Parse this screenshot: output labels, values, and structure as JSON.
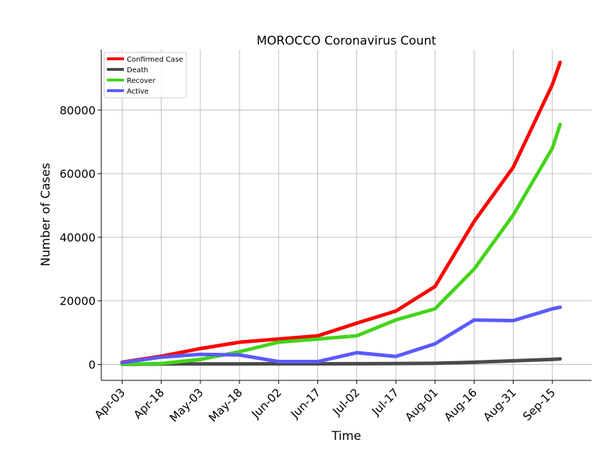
{
  "chart_data": {
    "type": "line",
    "title": "MOROCCO Coronavirus Count",
    "xlabel": "Time",
    "ylabel": "Number of Cases",
    "grid": true,
    "legend_position": "top-left",
    "x_ticks": [
      "Apr-03",
      "Apr-18",
      "May-03",
      "May-18",
      "Jun-02",
      "Jun-17",
      "Jul-02",
      "Jul-17",
      "Aug-01",
      "Aug-16",
      "Aug-31",
      "Sep-15"
    ],
    "x_tick_days": [
      0,
      15,
      30,
      45,
      60,
      75,
      90,
      105,
      120,
      135,
      150,
      165
    ],
    "y_ticks": [
      0,
      20000,
      40000,
      60000,
      80000
    ],
    "y_tick_labels": [
      "0",
      "20000",
      "40000",
      "60000",
      "80000"
    ],
    "xlim_days": [
      -8,
      180
    ],
    "ylim": [
      -5000,
      99000
    ],
    "x_dates": [
      "Apr-03",
      "Apr-18",
      "May-03",
      "May-18",
      "Jun-02",
      "Jun-17",
      "Jul-02",
      "Jul-17",
      "Aug-01",
      "Aug-16",
      "Aug-31",
      "Sep-15",
      "Sep-18"
    ],
    "x_days": [
      0,
      15,
      30,
      45,
      60,
      75,
      90,
      105,
      120,
      135,
      150,
      165,
      168
    ],
    "series": [
      {
        "name": "Confirmed Case",
        "color": "#ff0000",
        "values": [
          700,
          2600,
          5000,
          7000,
          8000,
          9000,
          13000,
          16800,
          24500,
          45000,
          62000,
          88000,
          95000
        ]
      },
      {
        "name": "Death",
        "color": "#4a4a4a",
        "values": [
          40,
          140,
          190,
          195,
          205,
          215,
          230,
          270,
          370,
          700,
          1150,
          1600,
          1750
        ]
      },
      {
        "name": "Recover",
        "color": "#44d41a",
        "values": [
          100,
          300,
          1600,
          4000,
          7000,
          8000,
          9000,
          14000,
          17500,
          30000,
          47000,
          68000,
          75500
        ]
      },
      {
        "name": "Active",
        "color": "#5a5aff",
        "values": [
          600,
          2300,
          3200,
          3000,
          900,
          900,
          3700,
          2500,
          6500,
          14000,
          13800,
          17500,
          18000
        ]
      }
    ]
  }
}
